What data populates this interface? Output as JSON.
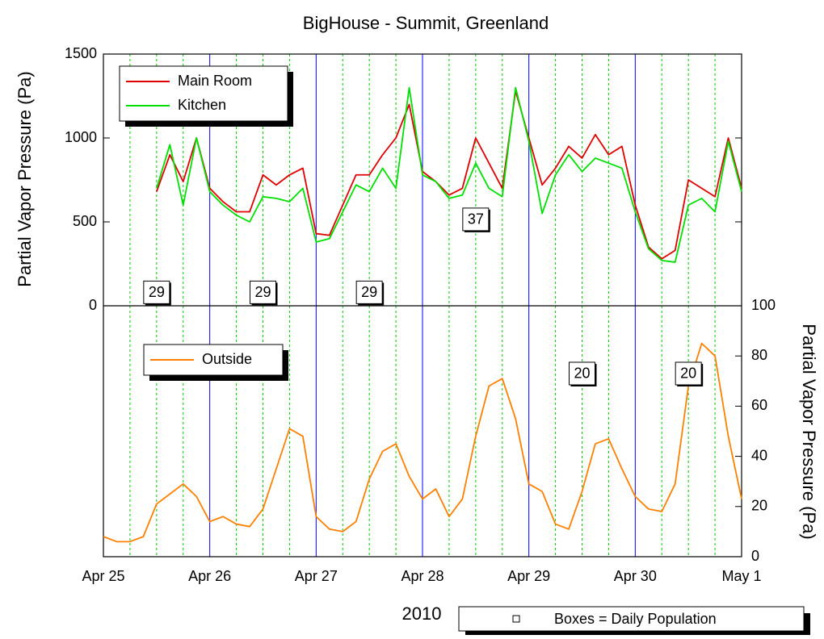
{
  "chart_data": [
    {
      "type": "line",
      "title": "BigHouse - Summit, Greenland",
      "ylabel": "Partial Vapor Pressure (Pa)",
      "x": [
        0.5,
        0.625,
        0.75,
        0.875,
        1,
        1.125,
        1.25,
        1.375,
        1.5,
        1.625,
        1.75,
        1.875,
        2,
        2.125,
        2.25,
        2.375,
        2.5,
        2.625,
        2.75,
        2.875,
        3,
        3.125,
        3.25,
        3.375,
        3.5,
        3.625,
        3.75,
        3.875,
        4,
        4.125,
        4.25,
        4.375,
        4.5,
        4.625,
        4.75,
        4.875,
        5,
        5.125,
        5.25,
        5.375,
        5.5,
        5.625,
        5.75,
        5.875,
        6
      ],
      "xlim": [
        0,
        6
      ],
      "ylim": [
        0,
        1500
      ],
      "yticks": [
        0,
        500,
        1000,
        1500
      ],
      "series": [
        {
          "name": "Main Room",
          "color": "#e00000",
          "values": [
            680,
            900,
            740,
            1000,
            700,
            620,
            560,
            560,
            780,
            720,
            780,
            820,
            430,
            420,
            600,
            780,
            780,
            900,
            1000,
            1200,
            800,
            740,
            660,
            700,
            1000,
            850,
            700,
            1280,
            1000,
            720,
            820,
            950,
            880,
            1020,
            900,
            950,
            600,
            350,
            280,
            330,
            750,
            700,
            650,
            1000,
            700
          ]
        },
        {
          "name": "Kitchen",
          "color": "#00e000",
          "values": [
            700,
            960,
            600,
            1000,
            680,
            600,
            540,
            500,
            650,
            640,
            620,
            700,
            380,
            400,
            560,
            720,
            680,
            820,
            700,
            1300,
            780,
            740,
            640,
            660,
            850,
            700,
            650,
            1300,
            980,
            550,
            780,
            900,
            800,
            880,
            850,
            820,
            560,
            340,
            270,
            260,
            600,
            640,
            560,
            980,
            680
          ]
        }
      ],
      "annotations": [
        {
          "text": "29",
          "x": 0.5,
          "y": 80
        },
        {
          "text": "29",
          "x": 1.5,
          "y": 80
        },
        {
          "text": "29",
          "x": 2.5,
          "y": 80
        },
        {
          "text": "37",
          "x": 3.5,
          "y": 515
        }
      ]
    },
    {
      "type": "line",
      "xlabel": "2010",
      "y2label": "Partial Vapor Pressure (Pa)",
      "x": [
        0,
        0.125,
        0.25,
        0.375,
        0.5,
        0.625,
        0.75,
        0.875,
        1,
        1.125,
        1.25,
        1.375,
        1.5,
        1.625,
        1.75,
        1.875,
        2,
        2.125,
        2.25,
        2.375,
        2.5,
        2.625,
        2.75,
        2.875,
        3,
        3.125,
        3.25,
        3.375,
        3.5,
        3.625,
        3.75,
        3.875,
        4,
        4.125,
        4.25,
        4.375,
        4.5,
        4.625,
        4.75,
        4.875,
        5,
        5.125,
        5.25,
        5.375,
        5.5,
        5.625,
        5.75,
        5.875,
        6
      ],
      "xlim": [
        0,
        6
      ],
      "xticks": [
        {
          "value": 0,
          "label": "Apr 25"
        },
        {
          "value": 1,
          "label": "Apr 26"
        },
        {
          "value": 2,
          "label": "Apr 27"
        },
        {
          "value": 3,
          "label": "Apr 28"
        },
        {
          "value": 4,
          "label": "Apr 29"
        },
        {
          "value": 5,
          "label": "Apr 30"
        },
        {
          "value": 6,
          "label": "May 1"
        }
      ],
      "minor_xticks": [
        0.25,
        0.5,
        0.75,
        1.25,
        1.5,
        1.75,
        2.25,
        2.5,
        2.75,
        3.25,
        3.5,
        3.75,
        4.25,
        4.5,
        4.75,
        5.25,
        5.5,
        5.75
      ],
      "major_grid_color": "#0000ff",
      "minor_grid_color": "#00cc00",
      "y2lim": [
        0,
        100
      ],
      "y2ticks": [
        0,
        20,
        40,
        60,
        80,
        100
      ],
      "series": [
        {
          "name": "Outside",
          "color": "#ff8000",
          "axis": "y2",
          "values": [
            8,
            6,
            6,
            8,
            21,
            25,
            29,
            24,
            14,
            16,
            13,
            12,
            19,
            35,
            51,
            48,
            16,
            11,
            10,
            14,
            31,
            42,
            45,
            32,
            23,
            27,
            16,
            23,
            48,
            68,
            71,
            55,
            29,
            26,
            13,
            11,
            26,
            45,
            47,
            35,
            24,
            19,
            18,
            29,
            68,
            85,
            80,
            48,
            23
          ]
        }
      ],
      "annotations": [
        {
          "text": "20",
          "x": 4.5,
          "y": 73
        },
        {
          "text": "20",
          "x": 5.5,
          "y": 73
        }
      ],
      "note": "Boxes = Daily Population"
    }
  ]
}
